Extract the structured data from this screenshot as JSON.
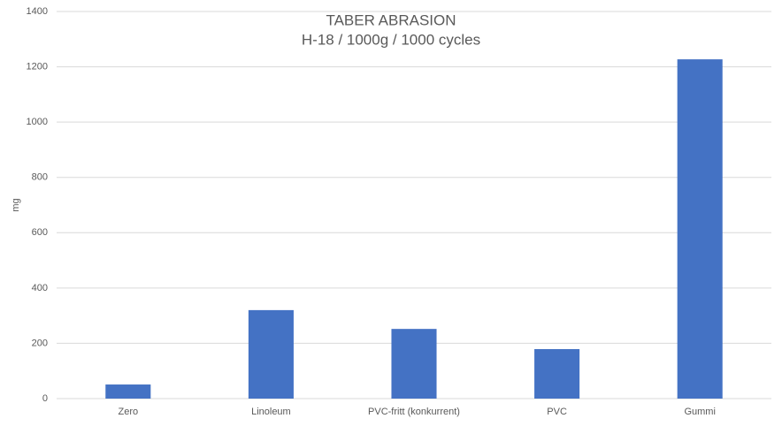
{
  "chart_data": {
    "type": "bar",
    "title": "TABER ABRASION",
    "subtitle": "H-18 / 1000g / 1000 cycles",
    "y_label": "mg",
    "categories": [
      "Zero",
      "Linoleum",
      "PVC-fritt (konkurrent)",
      "PVC",
      "Gummi"
    ],
    "values": [
      51,
      320,
      252,
      179,
      1227
    ],
    "color": "#4472c4",
    "ylim": [
      0,
      1400
    ],
    "yticks": [
      0,
      200,
      400,
      600,
      800,
      1000,
      1200,
      1400
    ],
    "grid": true
  }
}
